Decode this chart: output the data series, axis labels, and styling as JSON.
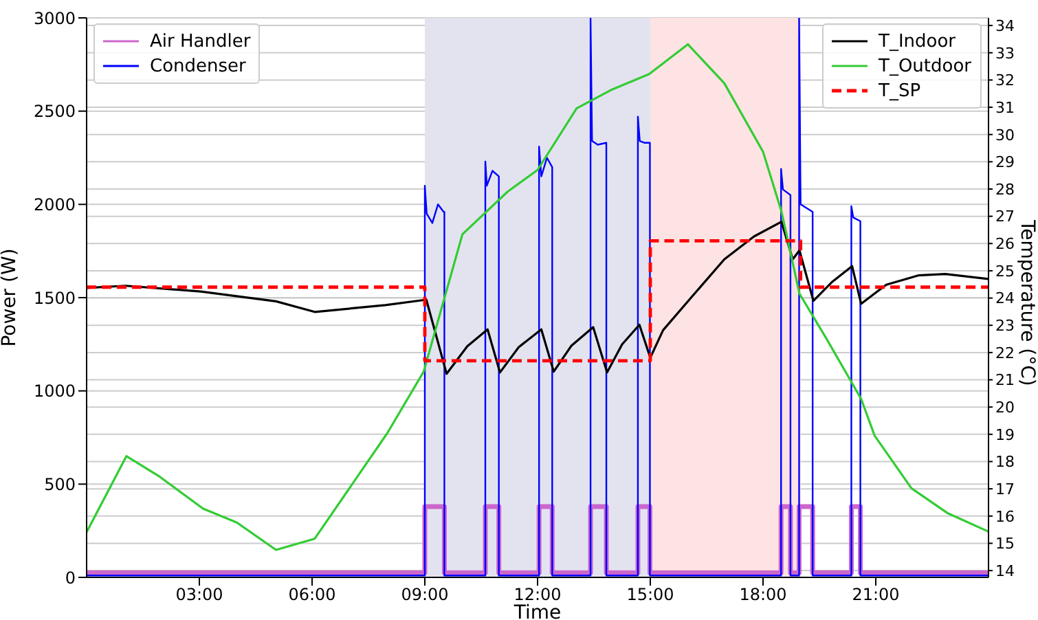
{
  "chart_data": {
    "type": "line",
    "xlabel": "Time",
    "ylabel": "Power (W)",
    "y2label": "Temperature (°C)",
    "xlim": [
      0,
      24
    ],
    "xticks": [
      {
        "value": 3,
        "label": "03:00"
      },
      {
        "value": 6,
        "label": "06:00"
      },
      {
        "value": 9,
        "label": "09:00"
      },
      {
        "value": 12,
        "label": "12:00"
      },
      {
        "value": 15,
        "label": "15:00"
      },
      {
        "value": 18,
        "label": "18:00"
      },
      {
        "value": 21,
        "label": "21:00"
      }
    ],
    "ylim": [
      0,
      3000
    ],
    "yticks": [
      0,
      500,
      1000,
      1500,
      2000,
      2500,
      3000
    ],
    "y2lim": [
      13.75,
      34.28
    ],
    "y2ticks": [
      14,
      15,
      16,
      17,
      18,
      19,
      20,
      21,
      22,
      23,
      24,
      25,
      26,
      27,
      28,
      29,
      30,
      31,
      32,
      33,
      34
    ],
    "grid": "y",
    "legend": "top left",
    "marker": "none",
    "line_style": "solid",
    "bands": [
      {
        "axis": "x",
        "from": 9,
        "to": 15,
        "color": "#e3e3f0"
      },
      {
        "axis": "x",
        "from": 15,
        "to": 19,
        "color": "#fde3e3"
      }
    ],
    "series": [
      {
        "name": "Air Handler",
        "color": "#cc66cc",
        "axis": "y",
        "x": [
          0,
          9.0,
          9.0,
          9.52,
          9.52,
          10.61,
          10.61,
          10.97,
          10.97,
          12.04,
          12.04,
          12.39,
          12.39,
          13.41,
          13.41,
          13.83,
          13.83,
          14.67,
          14.67,
          14.99,
          14.99,
          18.48,
          18.48,
          18.73,
          18.73,
          18.96,
          18.96,
          19.32,
          19.32,
          20.35,
          20.35,
          20.59,
          20.59,
          24
        ],
        "values": [
          25,
          25,
          380,
          380,
          25,
          25,
          380,
          380,
          25,
          25,
          380,
          380,
          25,
          25,
          380,
          380,
          25,
          25,
          380,
          380,
          25,
          25,
          380,
          380,
          25,
          25,
          380,
          380,
          25,
          25,
          380,
          380,
          25,
          25
        ]
      },
      {
        "name": "Condenser",
        "color": "#0000ff",
        "axis": "y",
        "x": [
          0,
          9.0,
          9.0,
          9.05,
          9.2,
          9.35,
          9.5,
          9.52,
          9.52,
          10.61,
          10.61,
          10.65,
          10.8,
          10.97,
          10.97,
          12.04,
          12.04,
          12.1,
          12.25,
          12.39,
          12.39,
          13.41,
          13.41,
          13.45,
          13.6,
          13.83,
          13.83,
          14.67,
          14.67,
          14.72,
          14.85,
          14.99,
          14.99,
          18.48,
          18.48,
          18.53,
          18.73,
          18.73,
          18.96,
          18.96,
          19.0,
          19.32,
          19.32,
          20.35,
          20.35,
          20.4,
          20.59,
          20.59,
          24
        ],
        "values": [
          10,
          10,
          2100,
          1950,
          1900,
          2000,
          1960,
          1960,
          10,
          10,
          2230,
          2100,
          2180,
          2150,
          10,
          10,
          2310,
          2150,
          2250,
          2200,
          10,
          10,
          3000,
          2340,
          2320,
          2330,
          10,
          10,
          2470,
          2340,
          2330,
          2330,
          10,
          10,
          2190,
          2080,
          2050,
          10,
          10,
          3000,
          2000,
          1960,
          10,
          10,
          1990,
          1930,
          1910,
          10,
          10
        ]
      },
      {
        "name": "T_Indoor",
        "color": "#000000",
        "axis": "y2",
        "x": [
          0,
          1.04,
          3.04,
          5.04,
          6.07,
          7.95,
          9.04,
          9.58,
          10.13,
          10.67,
          11.0,
          11.5,
          12.1,
          12.43,
          12.9,
          13.48,
          13.85,
          14.25,
          14.71,
          15.0,
          15.34,
          16.07,
          16.97,
          17.76,
          18.49,
          18.79,
          18.97,
          19.34,
          19.83,
          20.37,
          20.61,
          21.28,
          22.13,
          22.85,
          24
        ],
        "values": [
          24.37,
          24.45,
          24.24,
          23.88,
          23.49,
          23.74,
          23.94,
          21.22,
          22.23,
          22.85,
          21.27,
          22.2,
          22.85,
          21.3,
          22.25,
          22.93,
          21.27,
          22.3,
          23.02,
          21.81,
          22.82,
          23.99,
          25.42,
          26.26,
          26.8,
          25.42,
          25.75,
          23.9,
          24.58,
          25.17,
          23.79,
          24.49,
          24.83,
          24.88,
          24.7
        ]
      },
      {
        "name": "T_Outdoor",
        "color": "#33cc33",
        "axis": "y2",
        "x": [
          0,
          1.06,
          1.95,
          3.1,
          4.0,
          5.04,
          6.07,
          8.0,
          8.97,
          10.0,
          11.2,
          12.0,
          13.04,
          13.95,
          14.97,
          16.0,
          16.97,
          18.0,
          18.49,
          18.97,
          19.7,
          20.61,
          20.97,
          21.95,
          22.92,
          24
        ],
        "values": [
          15.41,
          18.2,
          17.44,
          16.27,
          15.76,
          14.76,
          15.17,
          19.04,
          21.3,
          26.34,
          27.9,
          28.7,
          30.96,
          31.63,
          32.22,
          33.31,
          31.88,
          29.37,
          27.18,
          24.16,
          22.48,
          20.3,
          18.95,
          17.02,
          16.1,
          15.43
        ]
      },
      {
        "name": "T_SP",
        "color": "#ff0000",
        "axis": "y2",
        "line_style": "dashed",
        "x": [
          0,
          9,
          9,
          15,
          15,
          19,
          19,
          24
        ],
        "values": [
          24.4,
          24.4,
          21.7,
          21.7,
          26.1,
          26.1,
          24.4,
          24.4
        ]
      }
    ]
  }
}
